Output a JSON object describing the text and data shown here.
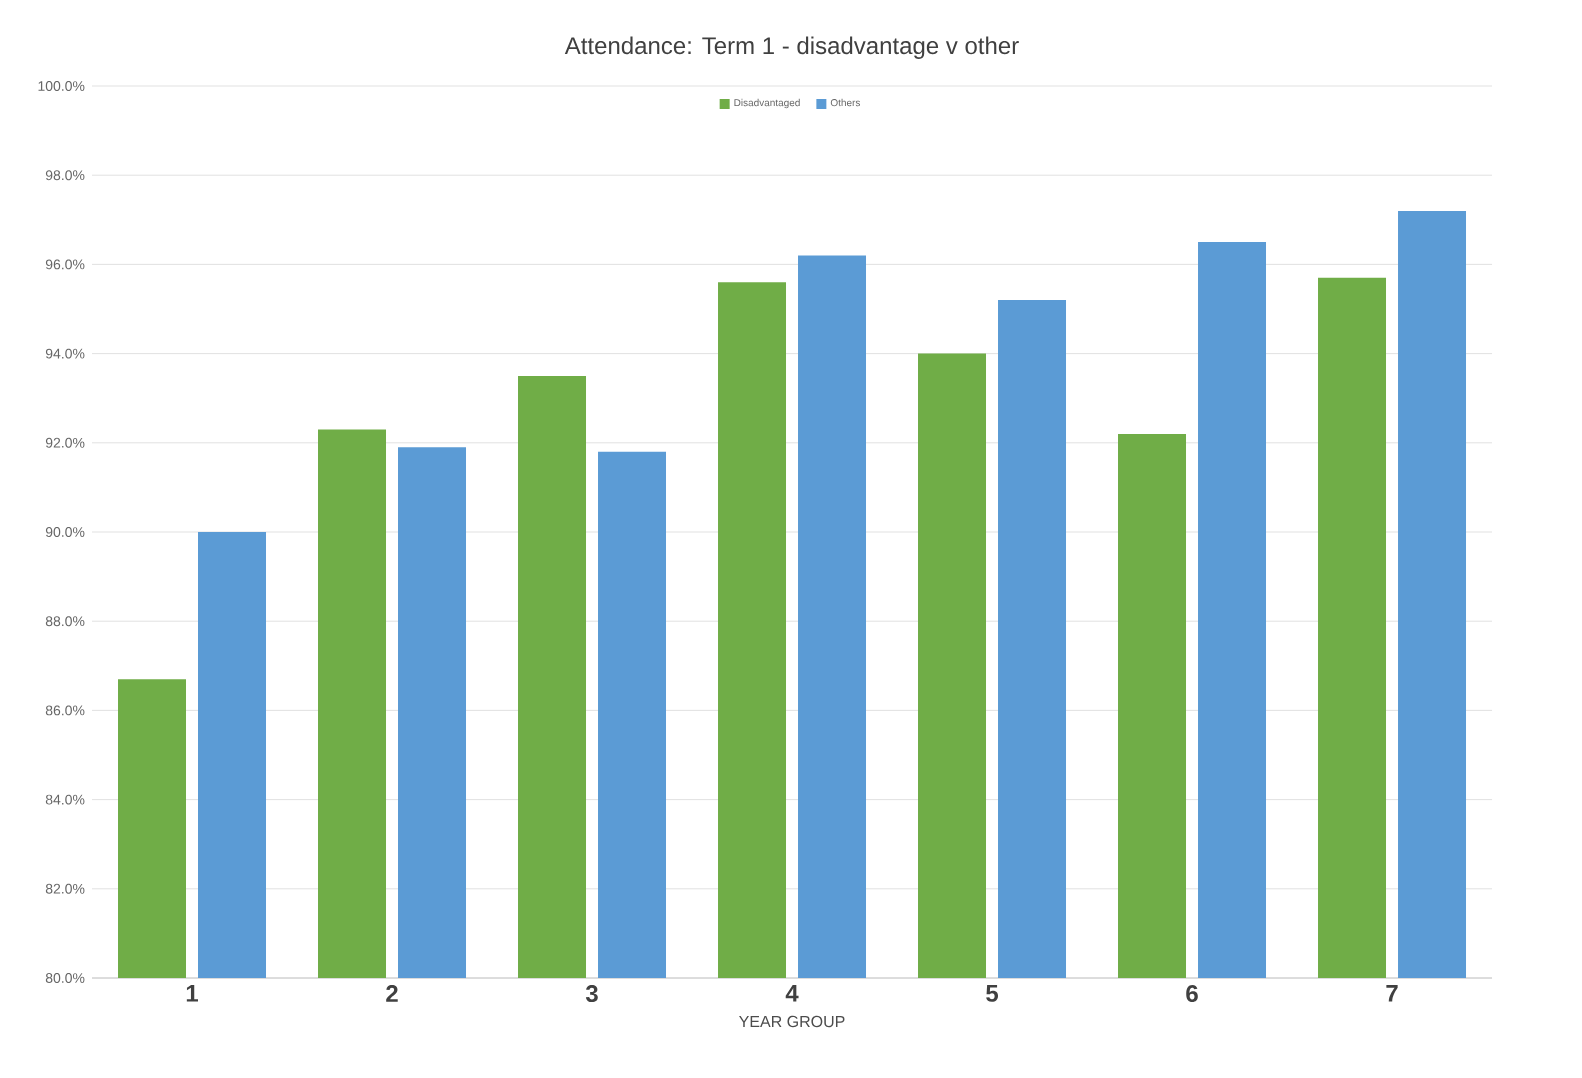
{
  "chart_data": {
    "type": "bar",
    "title": "Attendance: Term 1 - disadvantage v other",
    "xlabel": "YEAR GROUP",
    "categories": [
      "1",
      "2",
      "3",
      "4",
      "5",
      "6",
      "7"
    ],
    "series": [
      {
        "name": "Disadvantaged",
        "color": "#70ad47",
        "values": [
          86.7,
          92.3,
          93.5,
          95.6,
          94.0,
          92.2,
          95.7
        ]
      },
      {
        "name": "Others",
        "color": "#5b9bd5",
        "values": [
          90.0,
          91.9,
          91.8,
          96.2,
          95.2,
          96.5,
          97.2
        ]
      }
    ],
    "ylim": [
      80,
      100
    ],
    "yticks": [
      {
        "value": 80,
        "label": "80.0%"
      },
      {
        "value": 82,
        "label": "82.0%"
      },
      {
        "value": 84,
        "label": "84.0%"
      },
      {
        "value": 86,
        "label": "86.0%"
      },
      {
        "value": 88,
        "label": "88.0%"
      },
      {
        "value": 90,
        "label": "90.0%"
      },
      {
        "value": 92,
        "label": "92.0%"
      },
      {
        "value": 94,
        "label": "94.0%"
      },
      {
        "value": 96,
        "label": "96.0%"
      },
      {
        "value": 98,
        "label": "98.0%"
      },
      {
        "value": 100,
        "label": "100.0%"
      }
    ],
    "grid": "y",
    "legend": "top"
  }
}
